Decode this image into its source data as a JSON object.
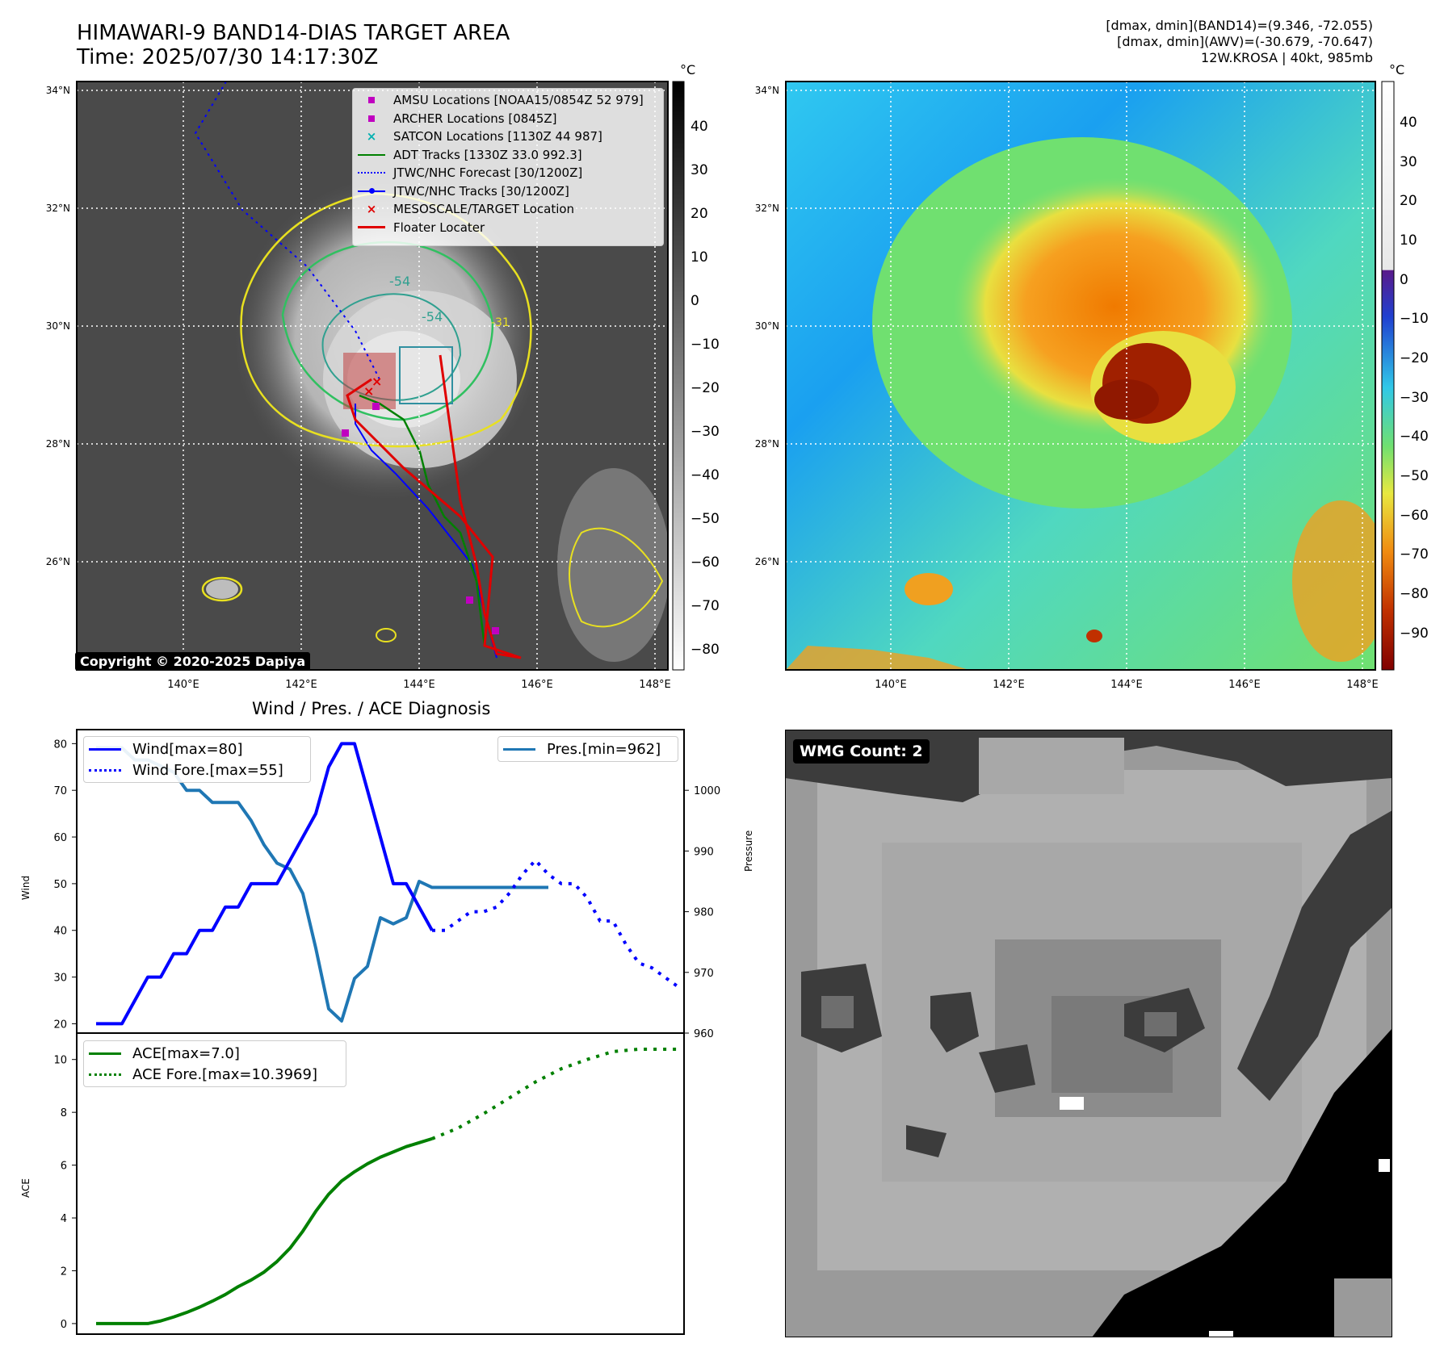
{
  "header": {
    "title_line1": "HIMAWARI-9 BAND14-DIAS TARGET AREA",
    "title_line2": "Time: 2025/07/30 14:17:30Z",
    "info_line1": "[dmax, dmin](BAND14)=(9.346, -72.055)",
    "info_line2": "[dmax, dmin](AWV)=(-30.679, -70.647)",
    "info_line3": "12W.KROSA | 40kt, 985mb"
  },
  "map": {
    "lat_labels": [
      "34°N",
      "32°N",
      "30°N",
      "28°N",
      "26°N"
    ],
    "lon_labels": [
      "140°E",
      "142°E",
      "144°E",
      "146°E",
      "148°E"
    ],
    "contour_labels": [
      "-54",
      "-54",
      "-31"
    ],
    "copyright": "Copyright © 2020-2025 Dapiya",
    "legend": [
      {
        "label": "AMSU Locations [NOAA15/0854Z 52 979]",
        "color": "#c000c0",
        "symbol": "square"
      },
      {
        "label": "ARCHER Locations [0845Z]",
        "color": "#c000c0",
        "symbol": "square"
      },
      {
        "label": "SATCON Locations [1130Z 44 987]",
        "color": "#00b0b0",
        "symbol": "x"
      },
      {
        "label": "ADT Tracks [1330Z 33.0 992.3]",
        "color": "#008000",
        "symbol": "line"
      },
      {
        "label": "JTWC/NHC Forecast [30/1200Z]",
        "color": "#0000ff",
        "symbol": "dotted"
      },
      {
        "label": "JTWC/NHC Tracks [30/1200Z]",
        "color": "#0000ff",
        "symbol": "line-dot"
      },
      {
        "label": "MESOSCALE/TARGET Location",
        "color": "#e00000",
        "symbol": "x"
      },
      {
        "label": "Floater Locater",
        "color": "#e00000",
        "symbol": "line"
      }
    ]
  },
  "colorbar_gray": {
    "unit": "°C",
    "ticks": [
      "40",
      "30",
      "20",
      "10",
      "0",
      "−10",
      "−20",
      "−30",
      "−40",
      "−50",
      "−60",
      "−70",
      "−80"
    ]
  },
  "colorbar_awv": {
    "unit": "°C",
    "ticks": [
      "40",
      "30",
      "20",
      "10",
      "0",
      "−10",
      "−20",
      "−30",
      "−40",
      "−50",
      "−60",
      "−70",
      "−80",
      "−90"
    ]
  },
  "wmg": {
    "label": "WMG Count: 2"
  },
  "diag": {
    "title": "Wind / Pres. / ACE Diagnosis",
    "wind_ylabel": "Wind",
    "pres_ylabel": "Pressure",
    "ace_ylabel": "ACE",
    "wind_ticks": [
      "80",
      "70",
      "60",
      "50",
      "40",
      "30",
      "20"
    ],
    "pres_ticks": [
      "1000",
      "990",
      "980",
      "970",
      "960"
    ],
    "ace_ticks": [
      "10",
      "8",
      "6",
      "4",
      "2",
      "0"
    ]
  },
  "chart_data": [
    {
      "type": "line",
      "title": "Wind / Pres. / ACE Diagnosis",
      "ylabel": "Wind",
      "ylim": [
        18,
        83
      ],
      "y2label": "Pressure",
      "y2lim": [
        960,
        1010
      ],
      "series": [
        {
          "name": "Wind[max=80]",
          "axis": "left",
          "color": "#0000ff",
          "style": "solid",
          "x": [
            0,
            1,
            2,
            3,
            4,
            5,
            6,
            7,
            8,
            9,
            10,
            11,
            12,
            13,
            14,
            15,
            16,
            17,
            18,
            19,
            20,
            21,
            22,
            23,
            24,
            25,
            26
          ],
          "values": [
            20,
            20,
            20,
            25,
            30,
            30,
            35,
            35,
            40,
            40,
            45,
            45,
            50,
            50,
            50,
            55,
            60,
            65,
            75,
            80,
            80,
            70,
            60,
            50,
            50,
            45,
            40
          ]
        },
        {
          "name": "Wind Fore.[max=55]",
          "axis": "left",
          "color": "#0000ff",
          "style": "dotted",
          "x": [
            26,
            27,
            28,
            29,
            30,
            31,
            32,
            33,
            34,
            35,
            36,
            37,
            38,
            39,
            40,
            41,
            42,
            43,
            44,
            45
          ],
          "values": [
            40,
            40,
            42,
            44,
            44,
            45,
            48,
            52,
            55,
            52,
            50,
            50,
            47,
            42,
            42,
            37,
            33,
            32,
            30,
            28
          ]
        },
        {
          "name": "Pres.[min=962]",
          "axis": "right",
          "color": "#1f77b4",
          "style": "solid",
          "x": [
            0,
            1,
            2,
            3,
            4,
            5,
            6,
            7,
            8,
            9,
            10,
            11,
            12,
            13,
            14,
            15,
            16,
            17,
            18,
            19,
            20,
            21,
            22,
            23,
            24,
            25,
            26,
            27,
            28,
            29,
            30,
            31,
            32,
            33,
            34,
            35
          ],
          "values": [
            1007,
            1007,
            1007,
            1005,
            1005,
            1004,
            1003,
            1000,
            1000,
            998,
            998,
            998,
            995,
            991,
            988,
            987,
            983,
            974,
            964,
            962,
            969,
            971,
            979,
            978,
            979,
            985,
            984,
            984,
            984,
            984,
            984,
            984,
            984,
            984,
            984,
            984
          ]
        }
      ]
    },
    {
      "type": "line",
      "ylabel": "ACE",
      "ylim": [
        -0.4,
        11
      ],
      "series": [
        {
          "name": "ACE[max=7.0]",
          "color": "#008000",
          "style": "solid",
          "x": [
            0,
            1,
            2,
            3,
            4,
            5,
            6,
            7,
            8,
            9,
            10,
            11,
            12,
            13,
            14,
            15,
            16,
            17,
            18,
            19,
            20,
            21,
            22,
            23,
            24,
            25,
            26
          ],
          "values": [
            0,
            0,
            0,
            0,
            0,
            0.1,
            0.25,
            0.42,
            0.62,
            0.85,
            1.1,
            1.4,
            1.65,
            1.95,
            2.35,
            2.85,
            3.5,
            4.25,
            4.9,
            5.4,
            5.75,
            6.05,
            6.3,
            6.5,
            6.7,
            6.85,
            7.0
          ]
        },
        {
          "name": "ACE Fore.[max=10.3969]",
          "color": "#008000",
          "style": "dotted",
          "x": [
            26,
            28,
            30,
            32,
            34,
            36,
            38,
            40,
            42,
            44,
            45
          ],
          "values": [
            7.0,
            7.4,
            7.95,
            8.55,
            9.15,
            9.65,
            10.0,
            10.3,
            10.39,
            10.39,
            10.39
          ]
        }
      ]
    }
  ]
}
